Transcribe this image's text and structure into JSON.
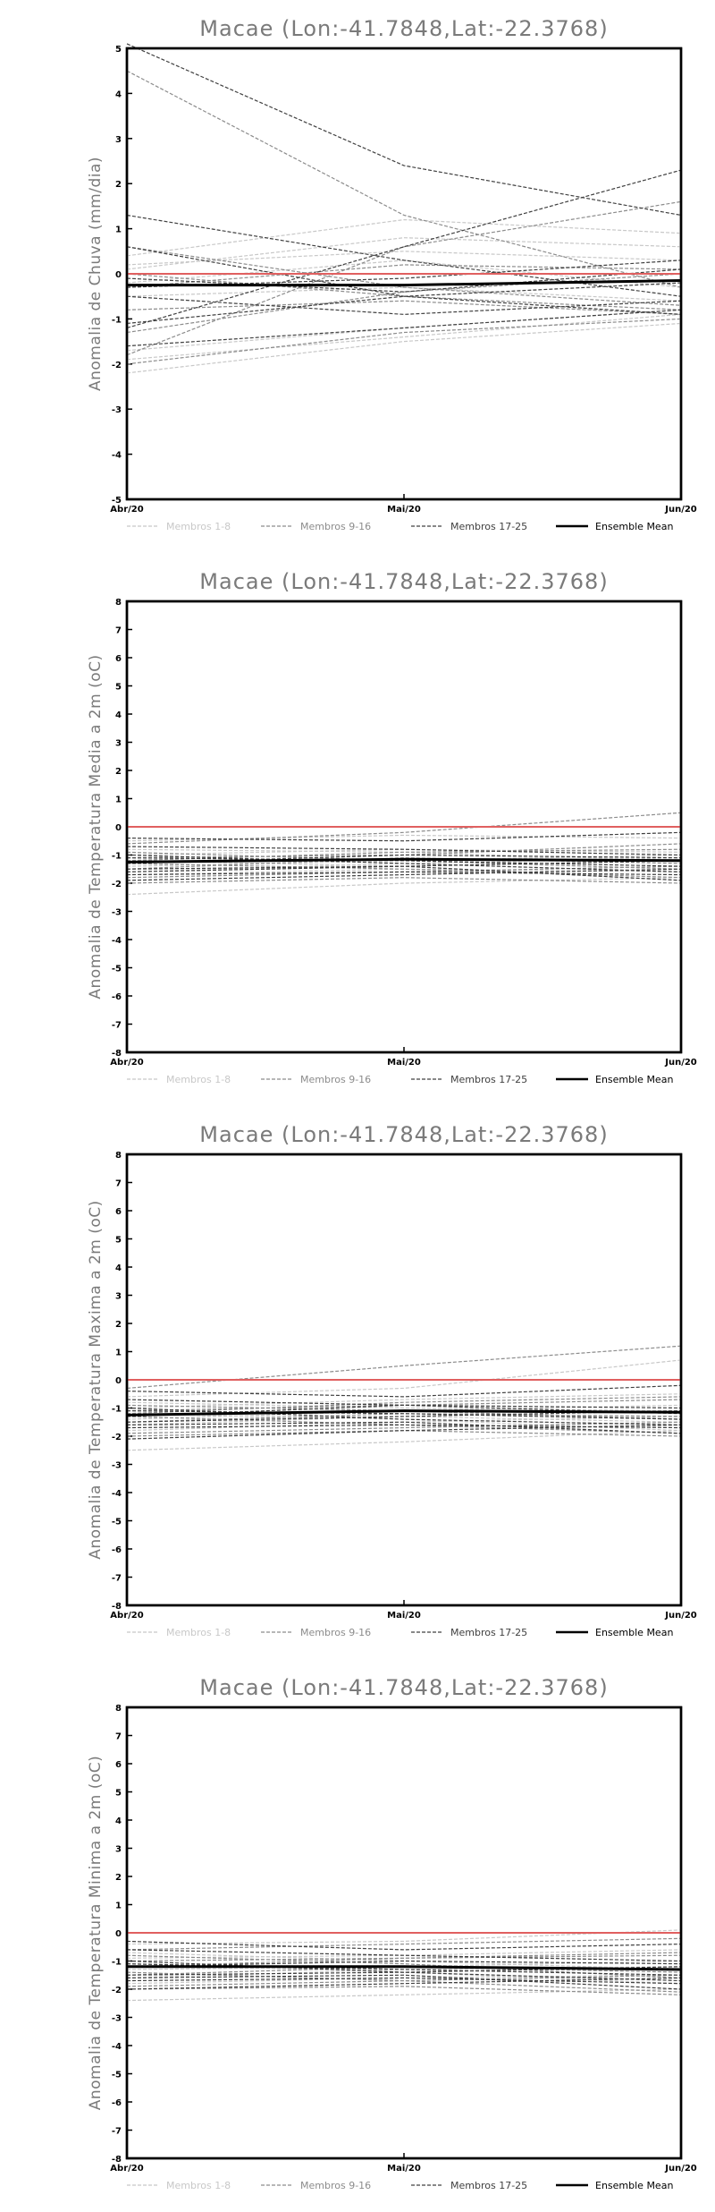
{
  "chart_data": [
    {
      "type": "line",
      "title": "Macae (Lon:-41.7848,Lat:-22.3768)",
      "ylabel": "Anomalia de Chuva (mm/dia)",
      "xlabel": "",
      "categories": [
        "Abr/20",
        "Mai/20",
        "Jun/20"
      ],
      "ylim": [
        -5,
        5
      ],
      "yticks": [
        -5,
        -4,
        -3,
        -2,
        -1,
        0,
        1,
        2,
        3,
        4,
        5
      ],
      "grid": false,
      "legend_position": "bottom",
      "reference_line": 0,
      "legend": [
        {
          "label": "Membros 1-8",
          "group": "g1",
          "color": "#c8c8c8"
        },
        {
          "label": "Membros 9-16",
          "group": "g2",
          "color": "#8c8c8c"
        },
        {
          "label": "Membros 17-25",
          "group": "g3",
          "color": "#404040"
        },
        {
          "label": "Ensemble Mean",
          "group": "mean",
          "color": "#000000"
        }
      ],
      "series": [
        {
          "group": "g1",
          "values": [
            0.4,
            1.2,
            0.9
          ]
        },
        {
          "group": "g1",
          "values": [
            0.1,
            0.8,
            0.6
          ]
        },
        {
          "group": "g1",
          "values": [
            -0.2,
            0.3,
            -0.3
          ]
        },
        {
          "group": "g1",
          "values": [
            -0.5,
            -0.3,
            -0.6
          ]
        },
        {
          "group": "g1",
          "values": [
            -1.9,
            -1.4,
            -0.9
          ]
        },
        {
          "group": "g1",
          "values": [
            -2.2,
            -1.5,
            -1.1
          ]
        },
        {
          "group": "g1",
          "values": [
            0.2,
            0.5,
            0.3
          ]
        },
        {
          "group": "g1",
          "values": [
            -1.7,
            -1.2,
            -0.8
          ]
        },
        {
          "group": "g2",
          "values": [
            4.5,
            1.3,
            -0.3
          ]
        },
        {
          "group": "g2",
          "values": [
            -1.8,
            0.6,
            1.6
          ]
        },
        {
          "group": "g2",
          "values": [
            0.6,
            -0.3,
            -0.7
          ]
        },
        {
          "group": "g2",
          "values": [
            -0.8,
            -0.6,
            -0.9
          ]
        },
        {
          "group": "g2",
          "values": [
            -1.3,
            -0.4,
            0.0
          ]
        },
        {
          "group": "g2",
          "values": [
            -0.3,
            0.2,
            0.1
          ]
        },
        {
          "group": "g2",
          "values": [
            -2.0,
            -1.3,
            -1.0
          ]
        },
        {
          "group": "g2",
          "values": [
            0.0,
            -0.5,
            -0.8
          ]
        },
        {
          "group": "g3",
          "values": [
            5.1,
            2.4,
            1.3
          ]
        },
        {
          "group": "g3",
          "values": [
            1.3,
            0.3,
            -0.5
          ]
        },
        {
          "group": "g3",
          "values": [
            -1.2,
            0.6,
            2.3
          ]
        },
        {
          "group": "g3",
          "values": [
            0.6,
            -0.5,
            -0.9
          ]
        },
        {
          "group": "g3",
          "values": [
            -0.5,
            -0.9,
            -0.6
          ]
        },
        {
          "group": "g3",
          "values": [
            -1.6,
            -1.2,
            -0.8
          ]
        },
        {
          "group": "g3",
          "values": [
            -1.1,
            -0.5,
            -0.2
          ]
        },
        {
          "group": "g3",
          "values": [
            -0.3,
            -0.1,
            0.3
          ]
        },
        {
          "group": "g3",
          "values": [
            -0.1,
            -0.4,
            0.1
          ]
        },
        {
          "group": "mean",
          "values": [
            -0.25,
            -0.25,
            -0.15
          ]
        }
      ]
    },
    {
      "type": "line",
      "title": "Macae (Lon:-41.7848,Lat:-22.3768)",
      "ylabel": "Anomalia de Temperatura Media a 2m (oC)",
      "xlabel": "",
      "categories": [
        "Abr/20",
        "Mai/20",
        "Jun/20"
      ],
      "ylim": [
        -8,
        8
      ],
      "yticks": [
        -8,
        -7,
        -6,
        -5,
        -4,
        -3,
        -2,
        -1,
        0,
        1,
        2,
        3,
        4,
        5,
        6,
        7,
        8
      ],
      "grid": false,
      "legend_position": "bottom",
      "reference_line": 0,
      "legend": [
        {
          "label": "Membros 1-8",
          "group": "g1",
          "color": "#c8c8c8"
        },
        {
          "label": "Membros 9-16",
          "group": "g2",
          "color": "#8c8c8c"
        },
        {
          "label": "Membros 17-25",
          "group": "g3",
          "color": "#404040"
        },
        {
          "label": "Ensemble Mean",
          "group": "mean",
          "color": "#000000"
        }
      ],
      "series": [
        {
          "group": "g1",
          "values": [
            -0.5,
            -0.3,
            -0.4
          ]
        },
        {
          "group": "g1",
          "values": [
            -1.0,
            -0.8,
            -0.9
          ]
        },
        {
          "group": "g1",
          "values": [
            -1.4,
            -1.2,
            -1.0
          ]
        },
        {
          "group": "g1",
          "values": [
            -1.7,
            -1.5,
            -1.6
          ]
        },
        {
          "group": "g1",
          "values": [
            -2.4,
            -2.0,
            -1.8
          ]
        },
        {
          "group": "g1",
          "values": [
            -1.2,
            -1.4,
            -1.9
          ]
        },
        {
          "group": "g1",
          "values": [
            -0.8,
            -0.9,
            -1.2
          ]
        },
        {
          "group": "g1",
          "values": [
            -1.6,
            -1.3,
            -1.1
          ]
        },
        {
          "group": "g2",
          "values": [
            -0.6,
            -0.2,
            0.5
          ]
        },
        {
          "group": "g2",
          "values": [
            -1.1,
            -1.0,
            -0.6
          ]
        },
        {
          "group": "g2",
          "values": [
            -1.3,
            -1.5,
            -1.8
          ]
        },
        {
          "group": "g2",
          "values": [
            -1.8,
            -1.6,
            -1.4
          ]
        },
        {
          "group": "g2",
          "values": [
            -1.5,
            -1.1,
            -1.3
          ]
        },
        {
          "group": "g2",
          "values": [
            -0.9,
            -1.2,
            -1.5
          ]
        },
        {
          "group": "g2",
          "values": [
            -2.0,
            -1.8,
            -2.0
          ]
        },
        {
          "group": "g2",
          "values": [
            -1.2,
            -0.9,
            -0.8
          ]
        },
        {
          "group": "g3",
          "values": [
            -0.4,
            -0.5,
            -0.2
          ]
        },
        {
          "group": "g3",
          "values": [
            -1.0,
            -1.3,
            -1.6
          ]
        },
        {
          "group": "g3",
          "values": [
            -1.5,
            -1.4,
            -1.2
          ]
        },
        {
          "group": "g3",
          "values": [
            -1.3,
            -1.0,
            -1.1
          ]
        },
        {
          "group": "g3",
          "values": [
            -1.7,
            -1.6,
            -1.7
          ]
        },
        {
          "group": "g3",
          "values": [
            -1.1,
            -1.2,
            -1.4
          ]
        },
        {
          "group": "g3",
          "values": [
            -1.9,
            -1.7,
            -1.5
          ]
        },
        {
          "group": "g3",
          "values": [
            -0.7,
            -0.8,
            -1.0
          ]
        },
        {
          "group": "g3",
          "values": [
            -1.6,
            -1.4,
            -1.9
          ]
        },
        {
          "group": "mean",
          "values": [
            -1.25,
            -1.15,
            -1.2
          ]
        }
      ]
    },
    {
      "type": "line",
      "title": "Macae (Lon:-41.7848,Lat:-22.3768)",
      "ylabel": "Anomalia de Temperatura Maxima a 2m (oC)",
      "xlabel": "",
      "categories": [
        "Abr/20",
        "Mai/20",
        "Jun/20"
      ],
      "ylim": [
        -8,
        8
      ],
      "yticks": [
        -8,
        -7,
        -6,
        -5,
        -4,
        -3,
        -2,
        -1,
        0,
        1,
        2,
        3,
        4,
        5,
        6,
        7,
        8
      ],
      "grid": false,
      "legend_position": "bottom",
      "reference_line": 0,
      "legend": [
        {
          "label": "Membros 1-8",
          "group": "g1",
          "color": "#c8c8c8"
        },
        {
          "label": "Membros 9-16",
          "group": "g2",
          "color": "#8c8c8c"
        },
        {
          "label": "Membros 17-25",
          "group": "g3",
          "color": "#404040"
        },
        {
          "label": "Ensemble Mean",
          "group": "mean",
          "color": "#000000"
        }
      ],
      "series": [
        {
          "group": "g1",
          "values": [
            -0.6,
            -0.3,
            0.7
          ]
        },
        {
          "group": "g1",
          "values": [
            -1.0,
            -0.7,
            -0.5
          ]
        },
        {
          "group": "g1",
          "values": [
            -1.4,
            -1.1,
            -0.9
          ]
        },
        {
          "group": "g1",
          "values": [
            -1.8,
            -1.5,
            -1.3
          ]
        },
        {
          "group": "g1",
          "values": [
            -2.5,
            -2.2,
            -1.8
          ]
        },
        {
          "group": "g1",
          "values": [
            -1.2,
            -1.4,
            -1.8
          ]
        },
        {
          "group": "g1",
          "values": [
            -0.8,
            -1.0,
            -1.1
          ]
        },
        {
          "group": "g1",
          "values": [
            -1.6,
            -1.3,
            -1.5
          ]
        },
        {
          "group": "g2",
          "values": [
            -0.3,
            0.5,
            1.2
          ]
        },
        {
          "group": "g2",
          "values": [
            -1.1,
            -0.9,
            -0.7
          ]
        },
        {
          "group": "g2",
          "values": [
            -1.3,
            -1.6,
            -1.9
          ]
        },
        {
          "group": "g2",
          "values": [
            -1.9,
            -1.7,
            -1.5
          ]
        },
        {
          "group": "g2",
          "values": [
            -1.5,
            -1.2,
            -1.3
          ]
        },
        {
          "group": "g2",
          "values": [
            -0.9,
            -1.1,
            -1.4
          ]
        },
        {
          "group": "g2",
          "values": [
            -2.0,
            -1.8,
            -2.0
          ]
        },
        {
          "group": "g2",
          "values": [
            -1.2,
            -0.8,
            -0.6
          ]
        },
        {
          "group": "g3",
          "values": [
            -0.4,
            -0.6,
            -0.2
          ]
        },
        {
          "group": "g3",
          "values": [
            -1.0,
            -1.4,
            -1.6
          ]
        },
        {
          "group": "g3",
          "values": [
            -1.5,
            -1.3,
            -1.1
          ]
        },
        {
          "group": "g3",
          "values": [
            -1.3,
            -0.9,
            -1.2
          ]
        },
        {
          "group": "g3",
          "values": [
            -1.7,
            -1.6,
            -1.7
          ]
        },
        {
          "group": "g3",
          "values": [
            -1.1,
            -1.2,
            -1.4
          ]
        },
        {
          "group": "g3",
          "values": [
            -2.1,
            -1.8,
            -1.6
          ]
        },
        {
          "group": "g3",
          "values": [
            -0.7,
            -0.9,
            -1.0
          ]
        },
        {
          "group": "g3",
          "values": [
            -1.6,
            -1.5,
            -1.9
          ]
        },
        {
          "group": "mean",
          "values": [
            -1.25,
            -1.1,
            -1.15
          ]
        }
      ]
    },
    {
      "type": "line",
      "title": "Macae (Lon:-41.7848,Lat:-22.3768)",
      "ylabel": "Anomalia de Temperatura Minima a 2m (oC)",
      "xlabel": "",
      "categories": [
        "Abr/20",
        "Mai/20",
        "Jun/20"
      ],
      "ylim": [
        -8,
        8
      ],
      "yticks": [
        -8,
        -7,
        -6,
        -5,
        -4,
        -3,
        -2,
        -1,
        0,
        1,
        2,
        3,
        4,
        5,
        6,
        7,
        8
      ],
      "grid": false,
      "legend_position": "bottom",
      "reference_line": 0,
      "legend": [
        {
          "label": "Membros 1-8",
          "group": "g1",
          "color": "#c8c8c8"
        },
        {
          "label": "Membros 9-16",
          "group": "g2",
          "color": "#8c8c8c"
        },
        {
          "label": "Membros 17-25",
          "group": "g3",
          "color": "#404040"
        },
        {
          "label": "Ensemble Mean",
          "group": "mean",
          "color": "#000000"
        }
      ],
      "series": [
        {
          "group": "g1",
          "values": [
            -0.4,
            -0.3,
            0.1
          ]
        },
        {
          "group": "g1",
          "values": [
            -0.9,
            -0.8,
            -0.6
          ]
        },
        {
          "group": "g1",
          "values": [
            -1.3,
            -1.2,
            -1.0
          ]
        },
        {
          "group": "g1",
          "values": [
            -1.8,
            -1.6,
            -1.5
          ]
        },
        {
          "group": "g1",
          "values": [
            -2.4,
            -2.2,
            -2.0
          ]
        },
        {
          "group": "g1",
          "values": [
            -1.1,
            -1.4,
            -1.8
          ]
        },
        {
          "group": "g1",
          "values": [
            -0.7,
            -1.0,
            -1.3
          ]
        },
        {
          "group": "g1",
          "values": [
            -1.6,
            -1.3,
            -1.2
          ]
        },
        {
          "group": "g2",
          "values": [
            -0.6,
            -0.4,
            -0.2
          ]
        },
        {
          "group": "g2",
          "values": [
            -1.0,
            -0.9,
            -0.7
          ]
        },
        {
          "group": "g2",
          "values": [
            -1.4,
            -1.7,
            -2.1
          ]
        },
        {
          "group": "g2",
          "values": [
            -1.9,
            -1.7,
            -1.5
          ]
        },
        {
          "group": "g2",
          "values": [
            -1.5,
            -1.2,
            -1.4
          ]
        },
        {
          "group": "g2",
          "values": [
            -0.8,
            -1.1,
            -1.6
          ]
        },
        {
          "group": "g2",
          "values": [
            -2.0,
            -1.9,
            -2.2
          ]
        },
        {
          "group": "g2",
          "values": [
            -1.2,
            -0.9,
            -0.8
          ]
        },
        {
          "group": "g3",
          "values": [
            -0.3,
            -0.6,
            -0.4
          ]
        },
        {
          "group": "g3",
          "values": [
            -1.0,
            -1.4,
            -1.7
          ]
        },
        {
          "group": "g3",
          "values": [
            -1.5,
            -1.4,
            -1.2
          ]
        },
        {
          "group": "g3",
          "values": [
            -1.2,
            -1.0,
            -1.1
          ]
        },
        {
          "group": "g3",
          "values": [
            -1.7,
            -1.6,
            -1.8
          ]
        },
        {
          "group": "g3",
          "values": [
            -1.1,
            -1.3,
            -1.5
          ]
        },
        {
          "group": "g3",
          "values": [
            -2.0,
            -1.8,
            -1.6
          ]
        },
        {
          "group": "g3",
          "values": [
            -0.6,
            -0.8,
            -1.0
          ]
        },
        {
          "group": "g3",
          "values": [
            -1.6,
            -1.5,
            -2.0
          ]
        },
        {
          "group": "mean",
          "values": [
            -1.2,
            -1.2,
            -1.3
          ]
        }
      ]
    }
  ],
  "colors": {
    "reference_line": "#e06060",
    "axis": "#000000",
    "title_text": "#7a7a7a",
    "legend_g1": "#c8c8c8",
    "legend_g2": "#8c8c8c",
    "legend_g3": "#404040",
    "legend_mean": "#000000"
  }
}
